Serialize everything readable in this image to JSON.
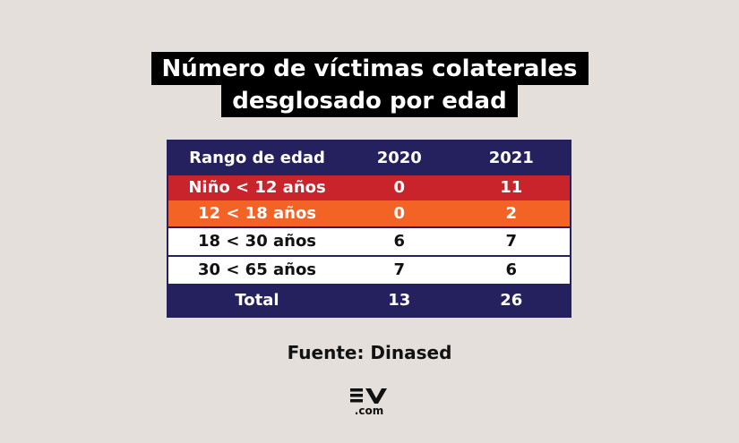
{
  "title": {
    "line1": "Número de víctimas colaterales",
    "line2": "desglosado por edad"
  },
  "chart_data": {
    "type": "table",
    "columns": [
      "Rango de edad",
      "2020",
      "2021"
    ],
    "rows": [
      {
        "label": "Niño < 12 años",
        "y2020": "0",
        "y2021": "11"
      },
      {
        "label": "12 < 18 años",
        "y2020": "0",
        "y2021": "2"
      },
      {
        "label": "18 < 30 años",
        "y2020": "6",
        "y2021": "7"
      },
      {
        "label": "30 < 65 años",
        "y2020": "7",
        "y2021": "6"
      }
    ],
    "total": {
      "label": "Total",
      "y2020": "13",
      "y2021": "26"
    },
    "colors": {
      "header": "#24215e",
      "row1": "#c9242b",
      "row2": "#f36325",
      "row3": "#ffffff",
      "row4": "#ffffff",
      "total": "#24215e"
    }
  },
  "source": "Fuente: Dinased",
  "logo": {
    "text": "EV",
    "sub": ".com"
  }
}
